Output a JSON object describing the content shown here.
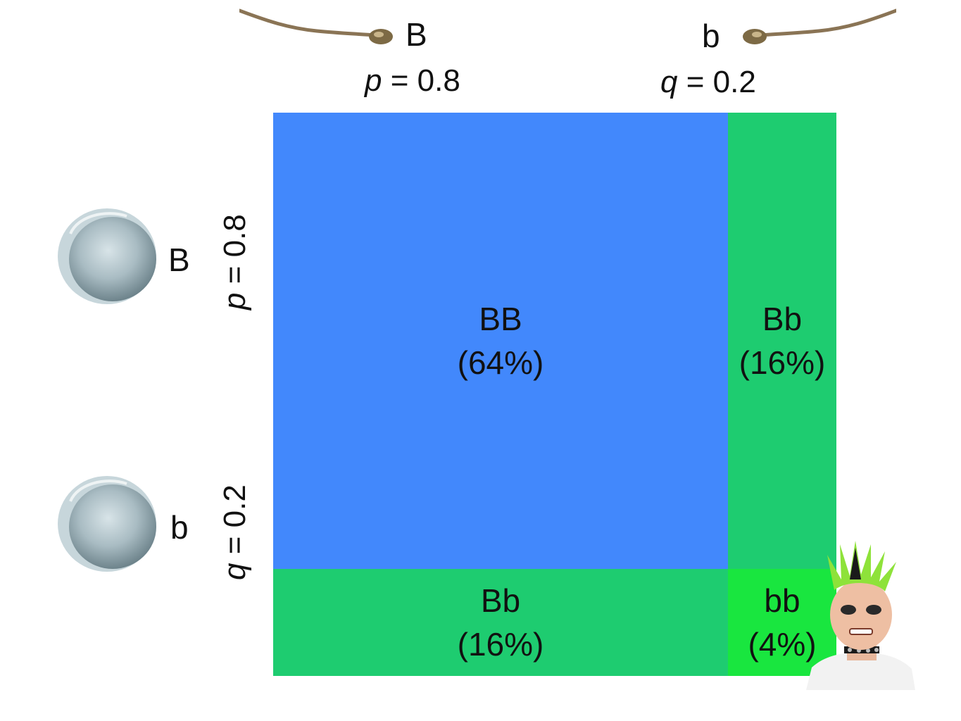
{
  "top": {
    "col1": {
      "allele": "B",
      "freq_symbol": "p",
      "freq_rest": " = 0.8"
    },
    "col2": {
      "allele": "b",
      "freq_symbol": "q",
      "freq_rest": " = 0.2"
    }
  },
  "left": {
    "row1": {
      "allele": "B",
      "freq_symbol": "p",
      "freq_rest": " = 0.8"
    },
    "row2": {
      "allele": "b",
      "freq_symbol": "q",
      "freq_rest": " = 0.2"
    }
  },
  "cells": {
    "BB": {
      "genotype": "BB",
      "percent": "(64%)",
      "color": "#4288fc"
    },
    "Bb_top": {
      "genotype": "Bb",
      "percent": "(16%)",
      "color": "#1ecc70"
    },
    "Bb_bottom": {
      "genotype": "Bb",
      "percent": "(16%)",
      "color": "#1ecc70"
    },
    "bb": {
      "genotype": "bb",
      "percent": "(4%)",
      "color": "#19e63f"
    }
  },
  "icons": {
    "sperm": "sperm-icon",
    "egg": "egg-cell-icon",
    "punk": "punk-person-icon"
  }
}
